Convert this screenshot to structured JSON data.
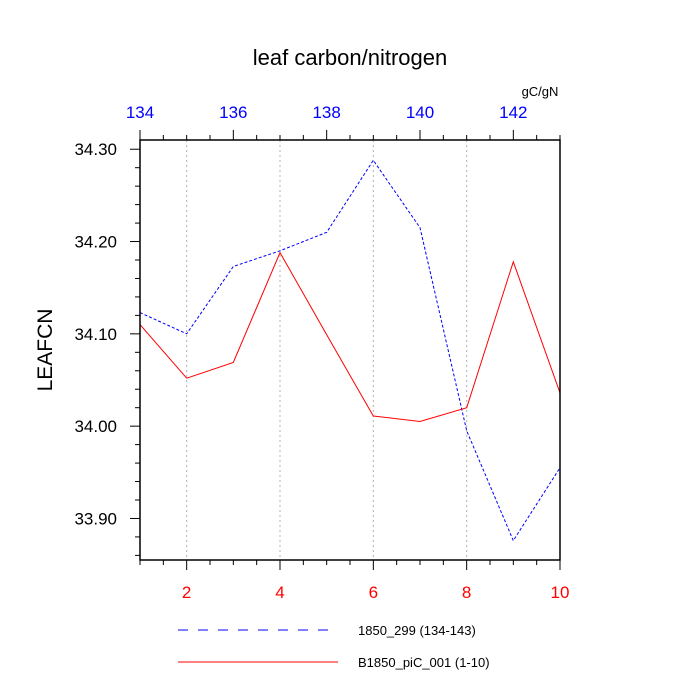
{
  "chart_data": {
    "type": "line",
    "title": "leaf carbon/nitrogen",
    "ylabel": "LEAFCN",
    "units": "gC/gN",
    "bottom_axis": {
      "range": [
        1,
        10
      ],
      "ticks": [
        2,
        4,
        6,
        8,
        10
      ],
      "tick_labels": [
        "2",
        "4",
        "6",
        "8",
        "10"
      ],
      "color": "#ff0000"
    },
    "top_axis": {
      "range": [
        134,
        143
      ],
      "ticks": [
        134,
        136,
        138,
        140,
        142
      ],
      "tick_labels": [
        "134",
        "136",
        "138",
        "140",
        "142"
      ],
      "color": "#0000ff"
    },
    "left_axis": {
      "range": [
        33.855,
        34.31
      ],
      "ticks": [
        33.9,
        34.0,
        34.1,
        34.2,
        34.3
      ],
      "tick_labels": [
        "33.90",
        "34.00",
        "34.10",
        "34.20",
        "34.30"
      ]
    },
    "grid": "vertical dotted at bottom-axis ticks",
    "legend_position": "bottom",
    "series": [
      {
        "name": "1850_299 (134-143)",
        "axis": "top",
        "color": "#0000ff",
        "dash": "dashed",
        "x": [
          134,
          135,
          136,
          137,
          138,
          139,
          140,
          141,
          142,
          143
        ],
        "values": [
          34.123,
          34.1,
          34.173,
          34.19,
          34.21,
          34.288,
          34.215,
          33.995,
          33.876,
          33.955
        ]
      },
      {
        "name": "B1850_piC_001 (1-10)",
        "axis": "bottom",
        "color": "#ff0000",
        "dash": "solid",
        "x": [
          1,
          2,
          3,
          4,
          5,
          6,
          7,
          8,
          9,
          10
        ],
        "values": [
          34.11,
          34.052,
          34.069,
          34.188,
          34.099,
          34.011,
          34.005,
          34.02,
          34.178,
          34.036
        ]
      }
    ]
  }
}
